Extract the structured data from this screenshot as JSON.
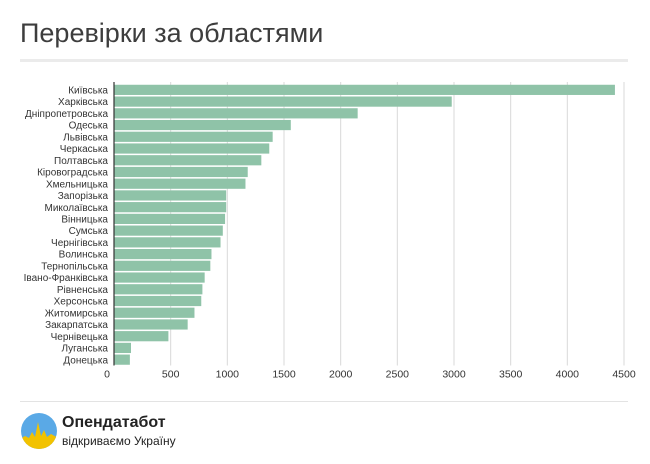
{
  "page": {
    "title": "Перевірки за областями"
  },
  "brand": {
    "name": "Опендатабот",
    "tagline": "відкриваємо Україну",
    "colors": {
      "sky": "#5aa9e6",
      "field": "#f2c200"
    }
  },
  "chart_data": {
    "type": "bar",
    "orientation": "horizontal",
    "title": "Перевірки за областями",
    "xlabel": "",
    "ylabel": "",
    "xlim": [
      0,
      4500
    ],
    "ticks": [
      0,
      500,
      1000,
      1500,
      2000,
      2500,
      3000,
      3500,
      4000,
      4500
    ],
    "grid": true,
    "bar_color": "#8fc3a8",
    "categories": [
      "Київська",
      "Харківська",
      "Дніпропетровська",
      "Одеська",
      "Львівська",
      "Черкаська",
      "Полтавська",
      "Кіровоградська",
      "Хмельницька",
      "Запорізька",
      "Миколаївська",
      "Вінницька",
      "Сумська",
      "Чернігівська",
      "Волинська",
      "Тернопільська",
      "Івано-Франківська",
      "Рівненська",
      "Херсонська",
      "Житомирська",
      "Закарпатська",
      "Чернівецька",
      "Луганська",
      "Донецька"
    ],
    "values": [
      4420,
      2980,
      2150,
      1560,
      1400,
      1370,
      1300,
      1180,
      1160,
      990,
      990,
      980,
      960,
      940,
      860,
      850,
      800,
      780,
      770,
      710,
      650,
      480,
      150,
      140
    ]
  }
}
